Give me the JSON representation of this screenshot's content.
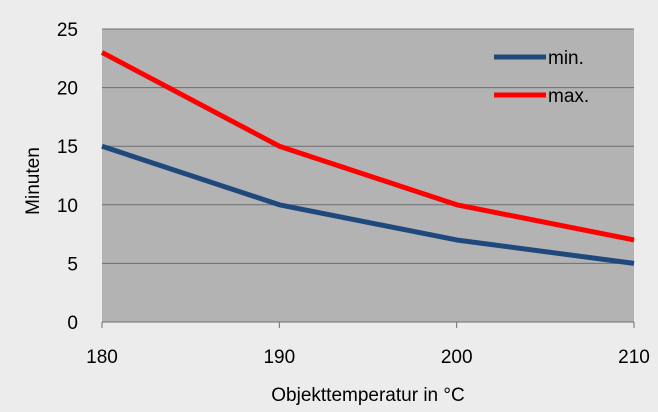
{
  "chart_data": {
    "type": "line",
    "title": "",
    "xlabel": "Objekttemperatur in °C",
    "ylabel": "Minuten",
    "x": [
      180,
      190,
      200,
      210
    ],
    "xlim": [
      180,
      210
    ],
    "ylim": [
      0,
      25
    ],
    "yticks": [
      0,
      5,
      10,
      15,
      20,
      25
    ],
    "xticks": [
      180,
      190,
      200,
      210
    ],
    "grid": true,
    "legend_position": "top-right",
    "series": [
      {
        "name": "min.",
        "color": "#1f497d",
        "values": [
          15,
          10,
          7,
          5
        ]
      },
      {
        "name": "max.",
        "color": "#ff0000",
        "values": [
          23,
          15,
          10,
          7
        ]
      }
    ],
    "colors": {
      "background": "#ececec",
      "plot_area": "#b3b3b3",
      "gridline": "#6e6e6e"
    }
  }
}
